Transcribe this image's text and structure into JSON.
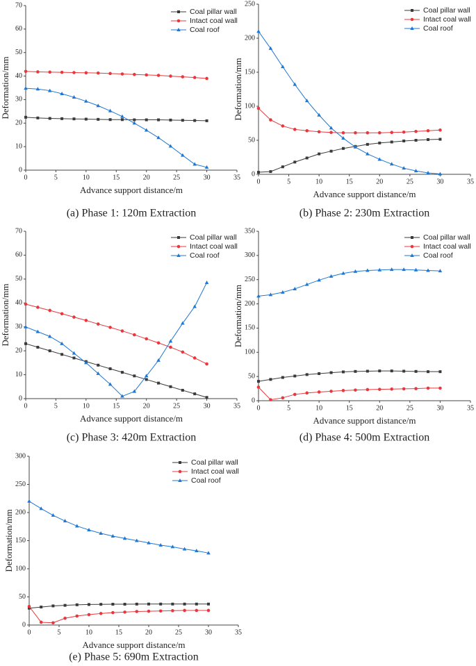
{
  "chart_data": [
    {
      "type": "line",
      "title": "(a) Phase 1: 120m Extraction",
      "xlabel": "Advance support distance/m",
      "ylabel": "Deformation/mm",
      "x": [
        0,
        2,
        4,
        6,
        8,
        10,
        12,
        14,
        16,
        18,
        20,
        22,
        24,
        26,
        28,
        30
      ],
      "xlim": [
        0,
        35
      ],
      "xticks": [
        0,
        5,
        10,
        15,
        20,
        25,
        30,
        35
      ],
      "ylim": [
        0,
        70
      ],
      "yticks": [
        0,
        10,
        20,
        30,
        40,
        50,
        60,
        70
      ],
      "series": [
        {
          "name": "Coal pillar wall",
          "color": "#3a3a3a",
          "marker": "square",
          "values": [
            22.5,
            22.2,
            22.0,
            21.9,
            21.8,
            21.7,
            21.6,
            21.5,
            21.5,
            21.4,
            21.4,
            21.4,
            21.3,
            21.2,
            21.1,
            21.0
          ]
        },
        {
          "name": "Intact coal wall",
          "color": "#e8383d",
          "marker": "circle",
          "values": [
            42,
            41.8,
            41.7,
            41.6,
            41.5,
            41.4,
            41.3,
            41.1,
            40.9,
            40.7,
            40.5,
            40.3,
            40.0,
            39.7,
            39.4,
            39.0
          ]
        },
        {
          "name": "Coal roof",
          "color": "#1f77d4",
          "marker": "triangle",
          "values": [
            34.8,
            34.5,
            33.8,
            32.5,
            31,
            29.3,
            27.4,
            25.2,
            22.8,
            20,
            17,
            13.8,
            10.2,
            6.3,
            2.5,
            1.2
          ]
        }
      ]
    },
    {
      "type": "line",
      "title": "(b) Phase 2: 230m Extraction",
      "xlabel": "Advance support distance/m",
      "ylabel": "Deformation/mm",
      "x": [
        0,
        2,
        4,
        6,
        8,
        10,
        12,
        14,
        16,
        18,
        20,
        22,
        24,
        26,
        28,
        30
      ],
      "xlim": [
        0,
        35
      ],
      "xticks": [
        0,
        5,
        10,
        15,
        20,
        25,
        30,
        35
      ],
      "ylim": [
        0,
        250
      ],
      "yticks": [
        0,
        50,
        100,
        150,
        200,
        250
      ],
      "series": [
        {
          "name": "Coal pillar wall",
          "color": "#3a3a3a",
          "marker": "square",
          "values": [
            3,
            4,
            11,
            18,
            24,
            30,
            34,
            38,
            41,
            44,
            46,
            47.5,
            49,
            50,
            51,
            51.5
          ]
        },
        {
          "name": "Intact coal wall",
          "color": "#e8383d",
          "marker": "circle",
          "values": [
            97,
            80,
            71,
            66,
            64,
            62.5,
            61.5,
            61,
            61,
            61,
            61,
            61.5,
            62,
            63,
            64,
            65
          ]
        },
        {
          "name": "Coal roof",
          "color": "#1f77d4",
          "marker": "triangle",
          "values": [
            210,
            185,
            158,
            132,
            108,
            87,
            68,
            53,
            40,
            30,
            22,
            15,
            9,
            5,
            2,
            0.5
          ]
        }
      ]
    },
    {
      "type": "line",
      "title": "(c) Phase 3: 420m Extraction",
      "xlabel": "Advance support distance/m",
      "ylabel": "Deformation/mm",
      "x": [
        0,
        2,
        4,
        6,
        8,
        10,
        12,
        14,
        16,
        18,
        20,
        22,
        24,
        26,
        28,
        30
      ],
      "xlim": [
        0,
        35
      ],
      "xticks": [
        0,
        5,
        10,
        15,
        20,
        25,
        30,
        35
      ],
      "ylim": [
        0,
        70
      ],
      "yticks": [
        0,
        10,
        20,
        30,
        40,
        50,
        60,
        70
      ],
      "series": [
        {
          "name": "Coal pillar wall",
          "color": "#3a3a3a",
          "marker": "square",
          "values": [
            23,
            21.5,
            20,
            18.5,
            17,
            15.5,
            14,
            12.5,
            11,
            9.5,
            8,
            6.5,
            5,
            3.5,
            2,
            0.5
          ]
        },
        {
          "name": "Intact coal wall",
          "color": "#e8383d",
          "marker": "circle",
          "values": [
            39.5,
            38.2,
            36.9,
            35.5,
            34.1,
            32.7,
            31.2,
            29.8,
            28.3,
            26.7,
            25,
            23.3,
            21.5,
            19.5,
            17,
            14.5
          ]
        },
        {
          "name": "Coal roof",
          "color": "#1f77d4",
          "marker": "triangle",
          "values": [
            30,
            28,
            26,
            23,
            19,
            15,
            10.5,
            6,
            1,
            3,
            9.5,
            16,
            24,
            31.5,
            38.5,
            48.5
          ]
        }
      ]
    },
    {
      "type": "line",
      "title": "(d) Phase 4: 500m Extraction",
      "xlabel": "Advance support distance/m",
      "ylabel": "Deformation/mm",
      "x": [
        0,
        2,
        4,
        6,
        8,
        10,
        12,
        14,
        16,
        18,
        20,
        22,
        24,
        26,
        28,
        30
      ],
      "xlim": [
        0,
        35
      ],
      "xticks": [
        0,
        5,
        10,
        15,
        20,
        25,
        30,
        35
      ],
      "ylim": [
        0,
        350
      ],
      "yticks": [
        0,
        50,
        100,
        150,
        200,
        250,
        300,
        350
      ],
      "series": [
        {
          "name": "Coal pillar wall",
          "color": "#3a3a3a",
          "marker": "square",
          "values": [
            40,
            44,
            48,
            51,
            54,
            56,
            58,
            59.5,
            60.5,
            61,
            61.5,
            61.5,
            61,
            60.5,
            60,
            60
          ]
        },
        {
          "name": "Intact coal wall",
          "color": "#e8383d",
          "marker": "circle",
          "values": [
            28,
            2,
            6,
            13,
            16,
            18,
            19.5,
            21,
            22,
            23,
            23.5,
            24,
            24.5,
            25,
            26,
            26
          ]
        },
        {
          "name": "Coal roof",
          "color": "#1f77d4",
          "marker": "triangle",
          "values": [
            216,
            219,
            224,
            231,
            240,
            249,
            257,
            263,
            267,
            269,
            270,
            271,
            271,
            270,
            269,
            268
          ]
        }
      ]
    },
    {
      "type": "line",
      "title": "(e) Phase 5: 690m Extraction",
      "xlabel": "Advance support distance/m",
      "ylabel": "Deformation/mm",
      "x": [
        0,
        2,
        4,
        6,
        8,
        10,
        12,
        14,
        16,
        18,
        20,
        22,
        24,
        26,
        28,
        30
      ],
      "xlim": [
        0,
        35
      ],
      "xticks": [
        0,
        5,
        10,
        15,
        20,
        25,
        30,
        35
      ],
      "ylim": [
        0,
        300
      ],
      "yticks": [
        0,
        50,
        100,
        150,
        200,
        250,
        300
      ],
      "series": [
        {
          "name": "Coal pillar wall",
          "color": "#3a3a3a",
          "marker": "square",
          "values": [
            30,
            32,
            34,
            35,
            36,
            36.5,
            36.8,
            37,
            37,
            37.2,
            37.3,
            37.3,
            37.3,
            37.3,
            37.3,
            37.3
          ]
        },
        {
          "name": "Intact coal wall",
          "color": "#e8383d",
          "marker": "circle",
          "values": [
            33,
            5,
            4,
            12,
            16,
            18.5,
            20.5,
            22,
            23,
            24,
            24.5,
            25,
            25.5,
            26,
            26,
            26
          ]
        },
        {
          "name": "Coal roof",
          "color": "#1f77d4",
          "marker": "triangle",
          "values": [
            220,
            207,
            195,
            185,
            176,
            169,
            163,
            158,
            154,
            150,
            146,
            142,
            139,
            135,
            132,
            128
          ]
        }
      ]
    }
  ]
}
